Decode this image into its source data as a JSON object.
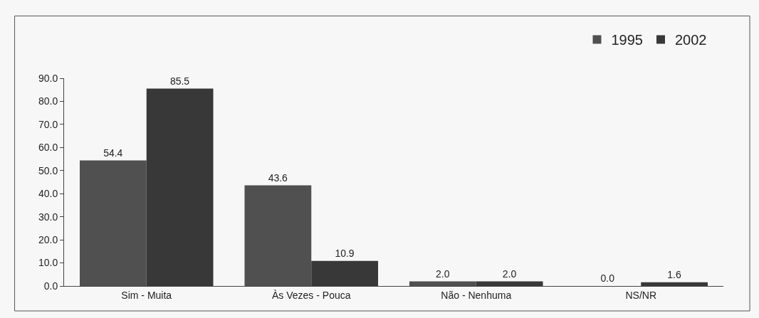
{
  "chart_data": {
    "type": "bar",
    "categories": [
      "Sim - Muita",
      "Às Vezes - Pouca",
      "Não - Nenhuma",
      "NS/NR"
    ],
    "series": [
      {
        "name": "1995",
        "color": "#505050",
        "values": [
          54.4,
          43.6,
          2.0,
          0.0
        ]
      },
      {
        "name": "2002",
        "color": "#383838",
        "values": [
          85.5,
          10.9,
          2.0,
          1.6
        ]
      }
    ],
    "ylim": [
      0,
      90
    ],
    "yticks": [
      {
        "value": 0,
        "label": "0.0"
      },
      {
        "value": 10,
        "label": "10.0"
      },
      {
        "value": 20,
        "label": "20.0"
      },
      {
        "value": 30,
        "label": "30.0"
      },
      {
        "value": 40,
        "label": "40.0"
      },
      {
        "value": 50,
        "label": "50.0"
      },
      {
        "value": 60,
        "label": "60.0"
      },
      {
        "value": 70,
        "label": "70.0"
      },
      {
        "value": 80,
        "label": "80.0"
      },
      {
        "value": 90,
        "label": "90.0"
      }
    ],
    "value_labels": [
      [
        "54.4",
        "43.6",
        "2.0",
        "0.0"
      ],
      [
        "85.5",
        "10.9",
        "2.0",
        "1.6"
      ]
    ],
    "legend": "top right",
    "grid": false
  }
}
